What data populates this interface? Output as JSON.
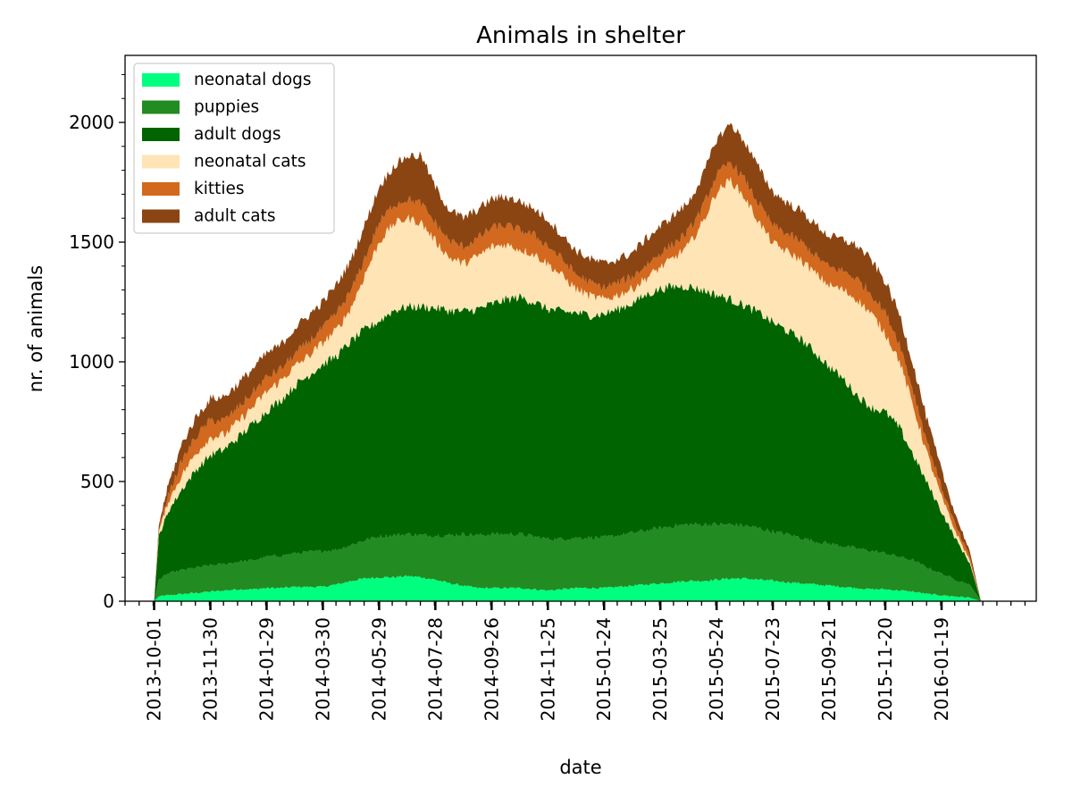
{
  "chart_data": {
    "type": "area",
    "stacked": true,
    "title": "Animals in shelter",
    "xlabel": "date",
    "ylabel": "nr. of animals",
    "xlim": [
      "2013-08-31",
      "2016-04-29"
    ],
    "ylim": [
      0,
      2280
    ],
    "yticks": [
      0,
      500,
      1000,
      1500,
      2000
    ],
    "xticks": [
      "2013-10-01",
      "2013-11-30",
      "2014-01-29",
      "2014-03-30",
      "2014-05-29",
      "2014-07-28",
      "2014-09-26",
      "2014-11-25",
      "2015-01-24",
      "2015-03-25",
      "2015-05-24",
      "2015-07-23",
      "2015-09-21",
      "2015-11-20",
      "2016-01-19"
    ],
    "grid": false,
    "legend": "top-left",
    "x": [
      "2013-10-01",
      "2013-10-06",
      "2013-10-16",
      "2013-10-31",
      "2013-11-15",
      "2013-11-30",
      "2013-12-15",
      "2013-12-30",
      "2014-01-14",
      "2014-01-29",
      "2014-02-13",
      "2014-02-28",
      "2014-03-15",
      "2014-03-30",
      "2014-04-14",
      "2014-04-29",
      "2014-05-14",
      "2014-05-29",
      "2014-06-13",
      "2014-06-28",
      "2014-07-13",
      "2014-07-28",
      "2014-08-12",
      "2014-08-27",
      "2014-09-11",
      "2014-09-26",
      "2014-10-11",
      "2014-10-26",
      "2014-11-10",
      "2014-11-25",
      "2014-12-10",
      "2014-12-25",
      "2015-01-09",
      "2015-01-24",
      "2015-02-08",
      "2015-02-23",
      "2015-03-10",
      "2015-03-25",
      "2015-04-09",
      "2015-04-24",
      "2015-05-09",
      "2015-05-24",
      "2015-06-08",
      "2015-06-23",
      "2015-07-08",
      "2015-07-23",
      "2015-08-07",
      "2015-08-22",
      "2015-09-06",
      "2015-09-21",
      "2015-10-06",
      "2015-10-21",
      "2015-11-05",
      "2015-11-20",
      "2015-12-05",
      "2015-12-20",
      "2016-01-04",
      "2016-01-19",
      "2016-02-03",
      "2016-02-18",
      "2016-03-01"
    ],
    "series": [
      {
        "name": "neonatal dogs",
        "color": "#00ff7f",
        "values": [
          0,
          20,
          25,
          30,
          35,
          40,
          45,
          50,
          50,
          55,
          55,
          60,
          60,
          60,
          70,
          85,
          95,
          100,
          100,
          105,
          100,
          90,
          75,
          65,
          55,
          55,
          55,
          55,
          50,
          45,
          50,
          55,
          55,
          55,
          60,
          65,
          70,
          75,
          80,
          85,
          85,
          90,
          95,
          95,
          90,
          85,
          80,
          75,
          70,
          65,
          60,
          55,
          50,
          50,
          45,
          40,
          30,
          25,
          20,
          15,
          0
        ]
      },
      {
        "name": "puppies",
        "color": "#228b22",
        "values": [
          0,
          70,
          90,
          100,
          105,
          110,
          110,
          115,
          120,
          130,
          135,
          140,
          145,
          150,
          145,
          150,
          160,
          170,
          175,
          175,
          175,
          185,
          200,
          215,
          220,
          225,
          225,
          225,
          220,
          215,
          210,
          210,
          210,
          210,
          215,
          220,
          225,
          230,
          235,
          235,
          235,
          230,
          225,
          220,
          215,
          205,
          200,
          190,
          180,
          175,
          170,
          165,
          160,
          150,
          140,
          130,
          110,
          90,
          70,
          55,
          0
        ]
      },
      {
        "name": "adult dogs",
        "color": "#006400",
        "values": [
          0,
          180,
          260,
          340,
          410,
          460,
          480,
          520,
          570,
          610,
          650,
          700,
          740,
          780,
          810,
          850,
          880,
          900,
          940,
          950,
          955,
          950,
          940,
          930,
          945,
          960,
          980,
          990,
          980,
          960,
          950,
          940,
          930,
          935,
          945,
          960,
          985,
          1000,
          1000,
          995,
          980,
          960,
          940,
          920,
          900,
          875,
          850,
          830,
          790,
          740,
          700,
          640,
          600,
          590,
          540,
          440,
          350,
          260,
          170,
          90,
          0
        ]
      },
      {
        "name": "neonatal cats",
        "color": "#ffe4b5",
        "values": [
          0,
          20,
          40,
          60,
          70,
          75,
          60,
          65,
          70,
          80,
          80,
          80,
          80,
          90,
          110,
          140,
          230,
          330,
          360,
          370,
          350,
          280,
          220,
          200,
          220,
          240,
          230,
          200,
          200,
          190,
          150,
          100,
          80,
          60,
          60,
          60,
          70,
          90,
          120,
          170,
          280,
          430,
          500,
          450,
          380,
          330,
          330,
          330,
          330,
          340,
          370,
          400,
          390,
          330,
          280,
          200,
          120,
          60,
          30,
          10,
          0
        ]
      },
      {
        "name": "kitties",
        "color": "#d2691e",
        "values": [
          0,
          10,
          30,
          60,
          70,
          70,
          60,
          60,
          60,
          60,
          50,
          50,
          60,
          60,
          70,
          70,
          70,
          80,
          80,
          80,
          80,
          75,
          70,
          70,
          75,
          80,
          80,
          80,
          80,
          75,
          70,
          60,
          55,
          50,
          50,
          50,
          55,
          60,
          60,
          60,
          65,
          70,
          75,
          75,
          75,
          75,
          75,
          75,
          75,
          75,
          80,
          85,
          85,
          85,
          75,
          65,
          50,
          40,
          25,
          15,
          0
        ]
      },
      {
        "name": "adult cats",
        "color": "#8b4513",
        "values": [
          0,
          20,
          40,
          70,
          80,
          90,
          100,
          100,
          100,
          100,
          100,
          110,
          110,
          110,
          120,
          130,
          140,
          150,
          160,
          180,
          200,
          150,
          130,
          120,
          120,
          120,
          120,
          120,
          110,
          110,
          100,
          100,
          100,
          100,
          100,
          100,
          110,
          110,
          120,
          120,
          130,
          150,
          160,
          160,
          150,
          140,
          130,
          130,
          130,
          130,
          130,
          140,
          140,
          130,
          120,
          110,
          90,
          70,
          45,
          25,
          0
        ]
      }
    ]
  }
}
